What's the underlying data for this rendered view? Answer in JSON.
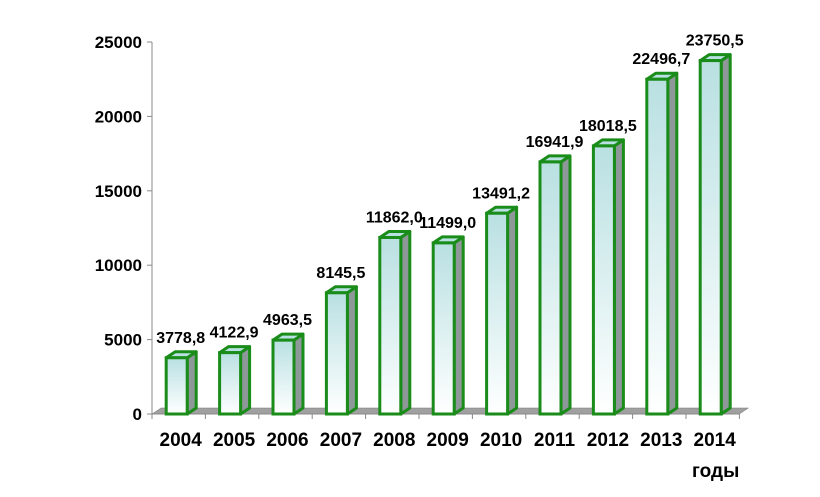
{
  "chart_data": {
    "type": "bar",
    "style": "3d-column",
    "categories": [
      "2004",
      "2005",
      "2006",
      "2007",
      "2008",
      "2009",
      "2010",
      "2011",
      "2012",
      "2013",
      "2014"
    ],
    "values": [
      3778.8,
      4122.9,
      4963.5,
      8145.5,
      11862.0,
      11499.0,
      13491.2,
      16941.9,
      18018.5,
      22496.7,
      23750.5
    ],
    "data_labels": [
      "3778,8",
      "4122,9",
      "4963,5",
      "8145,5",
      "11862,0",
      "11499,0",
      "13491,2",
      "16941,9",
      "18018,5",
      "22496,7",
      "23750,5"
    ],
    "yticks": [
      0,
      5000,
      10000,
      15000,
      20000,
      25000
    ],
    "ylim": [
      0,
      25000
    ],
    "xlabel": "годы",
    "ylabel": "",
    "title": "",
    "grid": false,
    "colors": {
      "bar_border": "#1a8c1a",
      "bar_top": "#b9e0e2",
      "bar_bottom": "#ffffff",
      "bar_side": "#8e9898",
      "floor": "#a0a0a0"
    }
  }
}
